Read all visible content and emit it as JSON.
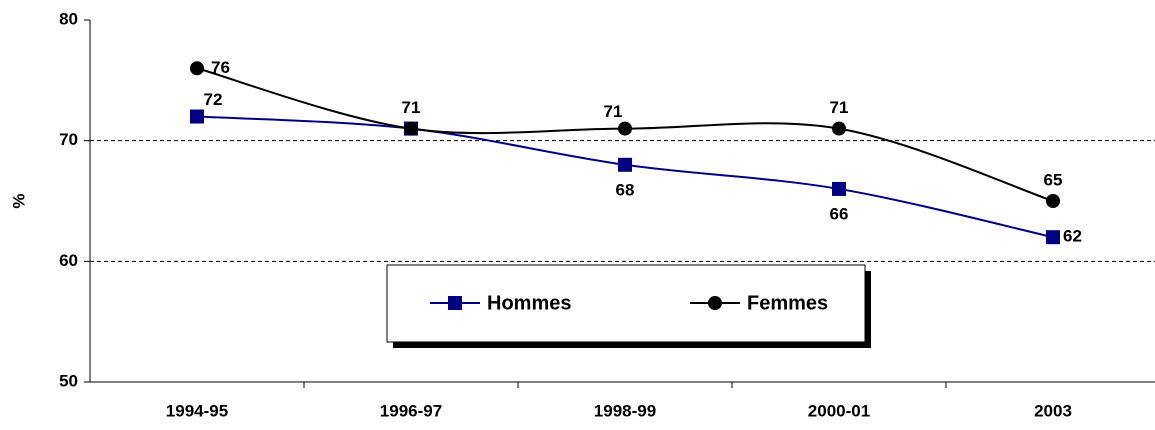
{
  "chart_data": {
    "type": "line",
    "y_label": "%",
    "categories": [
      "1994-95",
      "1996-97",
      "1998-99",
      "2000-01",
      "2003"
    ],
    "series": [
      {
        "name": "Hommes",
        "color": "#000080",
        "marker": "square",
        "values": [
          72,
          71,
          68,
          66,
          62
        ]
      },
      {
        "name": "Femmes",
        "color": "#000000",
        "marker": "circle",
        "values": [
          76,
          71,
          71,
          71,
          65
        ]
      }
    ],
    "ylim": [
      50,
      80
    ],
    "yticks": [
      50,
      60,
      70,
      80
    ],
    "grid": true
  }
}
